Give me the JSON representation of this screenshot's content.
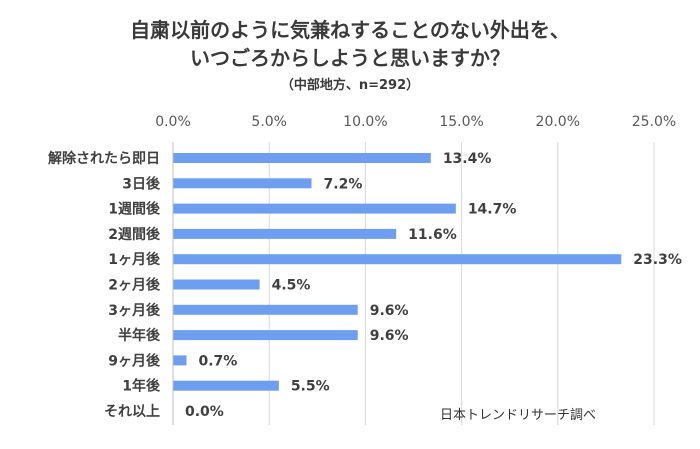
{
  "title_line1": "自粛以前のように気兼ねすることのない外出を、",
  "title_line2": "いつごろからしようと思いますか？",
  "subtitle": "（中部地方、n=292）",
  "source": "日本トレンドリサーチ調べ",
  "chart_data": {
    "type": "bar",
    "orientation": "horizontal",
    "categories": [
      "解除されたら即日",
      "3日後",
      "1週間後",
      "2週間後",
      "1ヶ月後",
      "2ヶ月後",
      "3ヶ月後",
      "半年後",
      "9ヶ月後",
      "1年後",
      "それ以上"
    ],
    "values": [
      13.4,
      7.2,
      14.7,
      11.6,
      23.3,
      4.5,
      9.6,
      9.6,
      0.7,
      5.5,
      0.0
    ],
    "value_labels": [
      "13.4%",
      "7.2%",
      "14.7%",
      "11.6%",
      "23.3%",
      "4.5%",
      "9.6%",
      "9.6%",
      "0.7%",
      "5.5%",
      "0.0%"
    ],
    "x_ticks": [
      "0.0%",
      "5.0%",
      "10.0%",
      "15.0%",
      "20.0%",
      "25.0%"
    ],
    "xlim": [
      0,
      25
    ],
    "xaxis_position": "top",
    "grid": true,
    "bar_color": "#6d9ef0"
  }
}
